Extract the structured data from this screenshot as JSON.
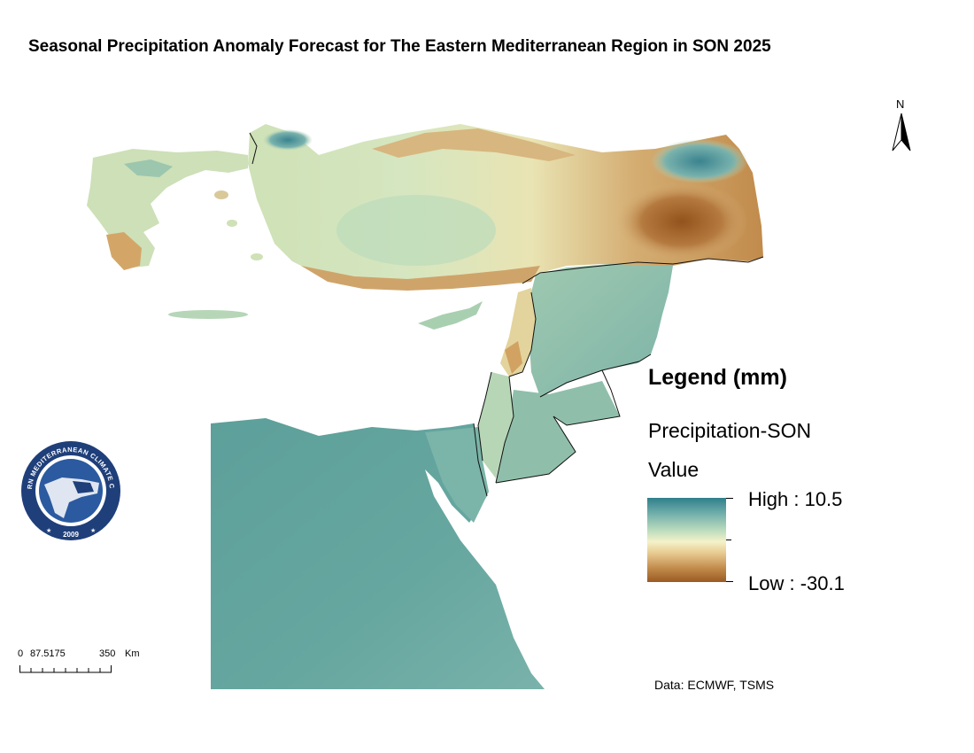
{
  "title": "Seasonal Precipitation Anomaly Forecast for The Eastern Mediterranean Region in SON 2025",
  "north_arrow": {
    "label": "N"
  },
  "legend": {
    "title": "Legend (mm)",
    "layer_name": "Precipitation-SON",
    "field_name": "Value",
    "high_label": "High : 10.5",
    "low_label": "Low : -30.1",
    "high_value": 10.5,
    "low_value": -30.1,
    "colors": {
      "high": "#2f7f8c",
      "mid": "#f4f2c9",
      "low": "#9a5a22"
    }
  },
  "scale_bar": {
    "labels": [
      "0",
      "87.5175",
      "350",
      "Km"
    ]
  },
  "source_text": "Data: ECMWF, TSMS",
  "logo": {
    "text_top": "EASTERN MEDITERRANEAN CLIMATE CENTRE",
    "year": "2009",
    "colors": {
      "ring": "#1f3f7a",
      "inner": "#ffffff"
    }
  },
  "map_colors": {
    "sea": "#ffffff",
    "wet": "#3c8a93",
    "normal_green": "#a9d2b4",
    "neutral": "#f0efc6",
    "dry": "#c9955a",
    "very_dry": "#9b5a22",
    "egypt": "#66a7a0",
    "border": "#111111"
  }
}
